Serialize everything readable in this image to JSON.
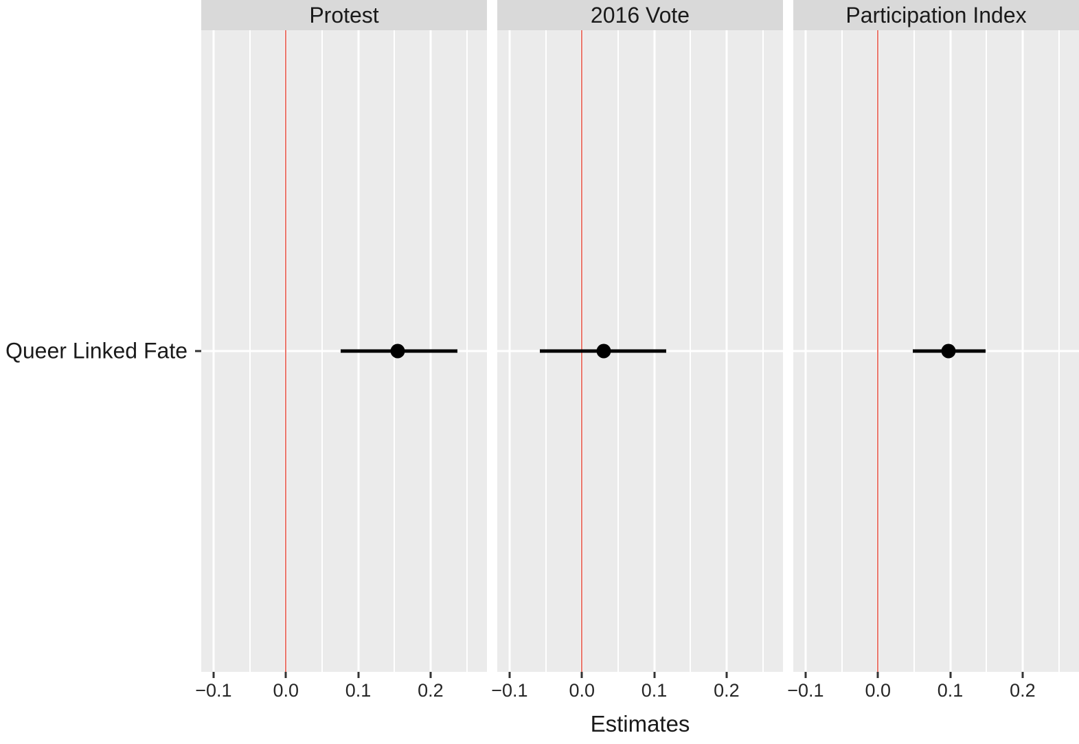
{
  "chart_data": {
    "type": "scatter",
    "subtype": "faceted-coefficient-dot-whisker-plot",
    "title": "",
    "xlabel": "Estimates",
    "ylabel": "",
    "categories": [
      "Queer Linked Fate"
    ],
    "facets": [
      {
        "label": "Protest",
        "category": "Queer Linked Fate",
        "estimate": 0.155,
        "ci_low": 0.076,
        "ci_high": 0.237
      },
      {
        "label": "2016 Vote",
        "category": "Queer Linked Fate",
        "estimate": 0.03,
        "ci_low": -0.058,
        "ci_high": 0.117
      },
      {
        "label": "Participation Index",
        "category": "Queer Linked Fate",
        "estimate": 0.098,
        "ci_low": 0.048,
        "ci_high": 0.149
      }
    ],
    "xlim": [
      -0.117,
      0.278
    ],
    "x_major_ticks": [
      -0.1,
      0.0,
      0.1,
      0.2
    ],
    "x_tick_labels": [
      "−0.1",
      "0.0",
      "0.1",
      "0.2"
    ],
    "x_minor_ticks": [
      -0.05,
      0.05,
      0.15,
      0.25
    ],
    "reference_line_x": 0,
    "grid": true,
    "legend_position": "none"
  },
  "colors": {
    "panel_bg": "#ebebeb",
    "strip_bg": "#d9d9d9",
    "gridline": "#ffffff",
    "reference_line": "#e9756a",
    "point": "#000000",
    "axis_text": "#262626",
    "label_text": "#1a1a1a"
  }
}
